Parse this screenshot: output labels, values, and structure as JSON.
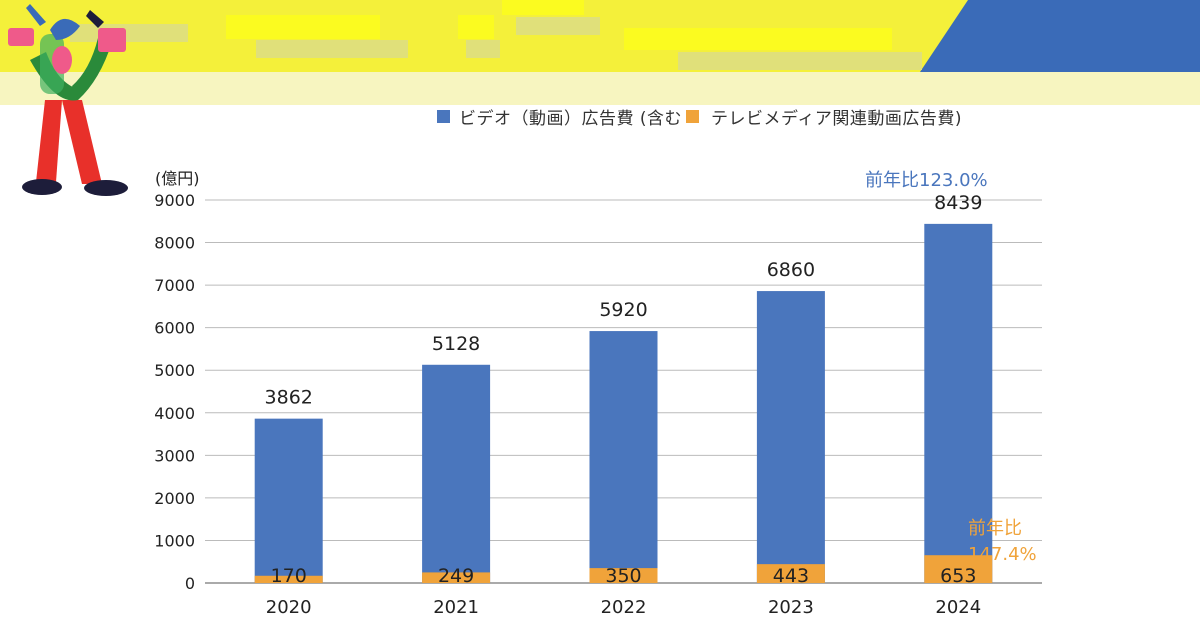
{
  "legend": {
    "series_a_label": "ビデオ（動画）広告費 (含む",
    "series_b_label": "テレビメディア関連動画広告費)",
    "series_a_color": "#4a76bd",
    "series_b_color": "#f0a33a"
  },
  "axis": {
    "unit": "(億円)"
  },
  "annotations": {
    "yoy_total": "前年比123.0%",
    "yoy_tv_line1": "前年比",
    "yoy_tv_line2": "147.4%"
  },
  "chart_data": {
    "type": "bar",
    "categories": [
      "2020",
      "2021",
      "2022",
      "2023",
      "2024"
    ],
    "series": [
      {
        "name": "ビデオ（動画）広告費",
        "values": [
          3862,
          5128,
          5920,
          6860,
          8439
        ],
        "color": "#4a76bd"
      },
      {
        "name": "テレビメディア関連動画広告費",
        "values": [
          170,
          249,
          350,
          443,
          653
        ],
        "color": "#f0a33a"
      }
    ],
    "ylim": [
      0,
      9000
    ],
    "yticks": [
      0,
      1000,
      2000,
      3000,
      4000,
      5000,
      6000,
      7000,
      8000,
      9000
    ],
    "ylabel": "(億円)",
    "grid": true,
    "overlay": true
  }
}
